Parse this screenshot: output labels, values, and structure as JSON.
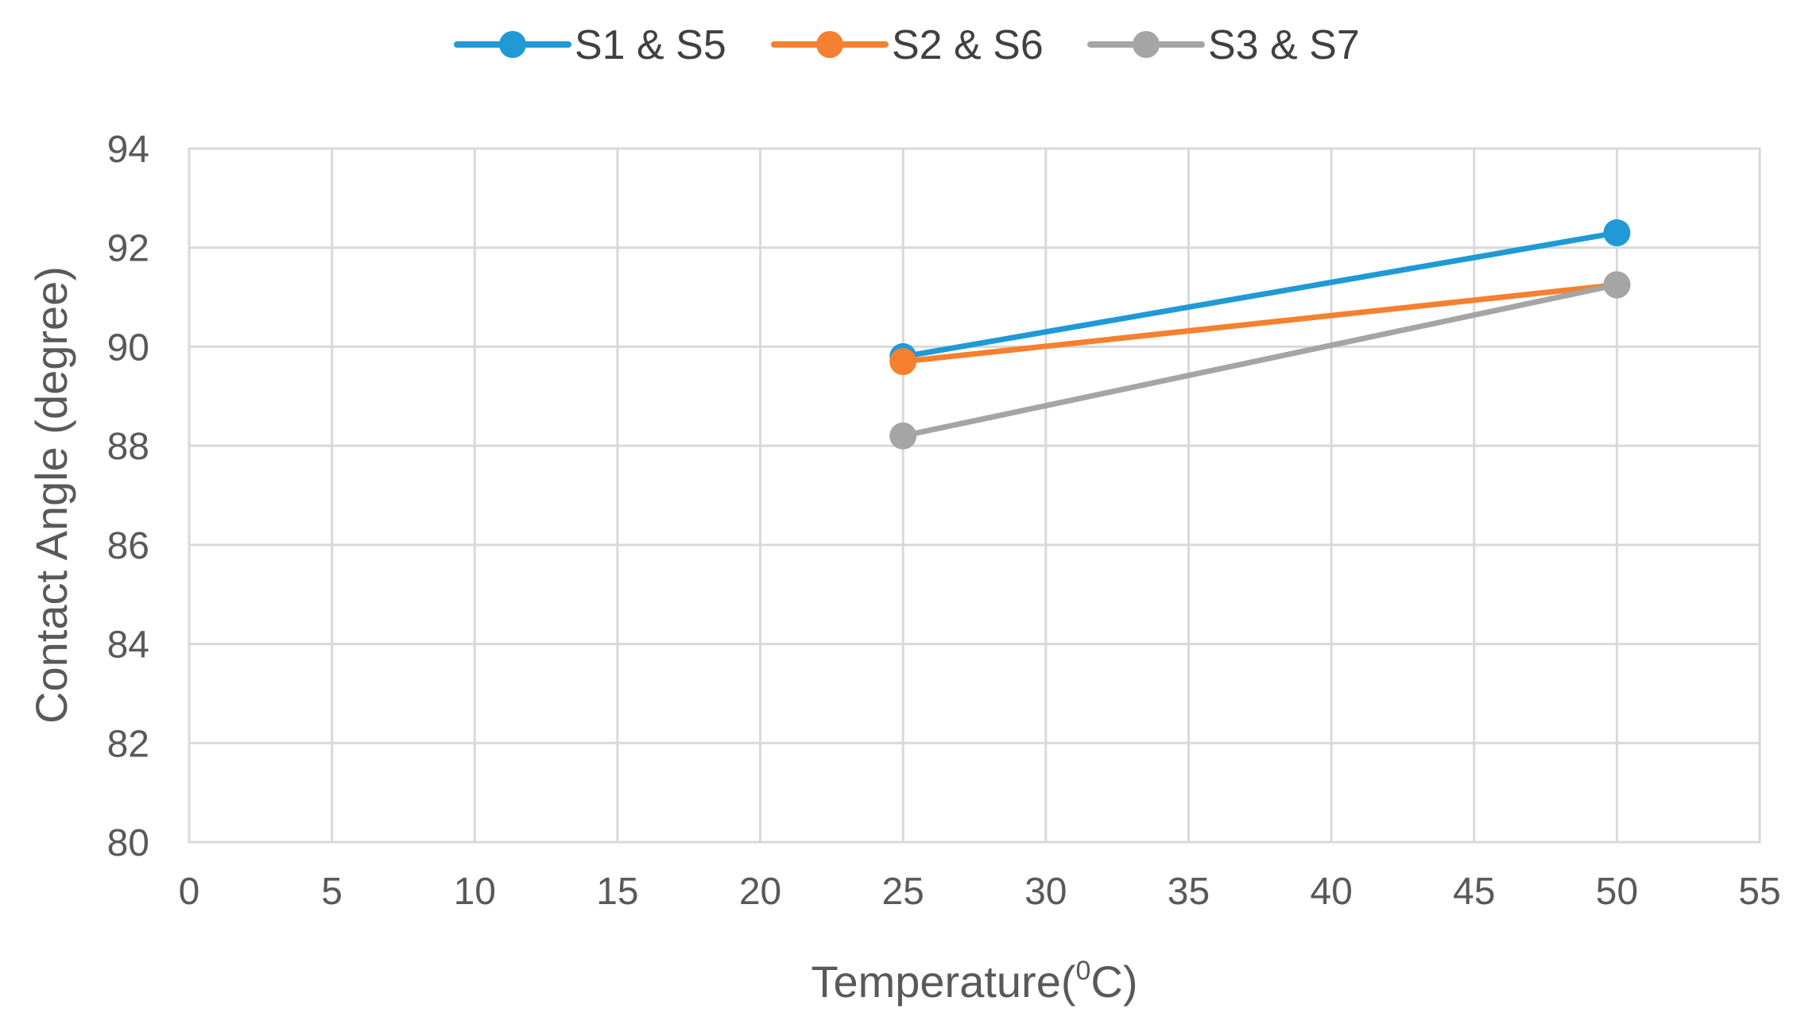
{
  "chart_data": {
    "type": "line",
    "title": "",
    "xlabel_main": "Temperature(",
    "xlabel_sup": "0",
    "xlabel_end": "C)",
    "ylabel": "Contact Angle (degree)",
    "xlim": [
      0,
      55
    ],
    "ylim": [
      80,
      94
    ],
    "x_ticks": [
      "0",
      "5",
      "10",
      "15",
      "20",
      "25",
      "30",
      "35",
      "40",
      "45",
      "50",
      "55"
    ],
    "y_ticks": [
      "80",
      "82",
      "84",
      "86",
      "88",
      "90",
      "92",
      "94"
    ],
    "grid": true,
    "legend_position": "top",
    "series": [
      {
        "name": "S1 & S5",
        "color": "#1f9ad6",
        "x": [
          25,
          50
        ],
        "values": [
          89.8,
          92.3
        ]
      },
      {
        "name": "S2 & S6",
        "color": "#f5802f",
        "x": [
          25,
          50
        ],
        "values": [
          89.7,
          91.25
        ]
      },
      {
        "name": "S3 & S7",
        "color": "#a5a5a5",
        "x": [
          25,
          50
        ],
        "values": [
          88.2,
          91.25
        ]
      }
    ]
  }
}
